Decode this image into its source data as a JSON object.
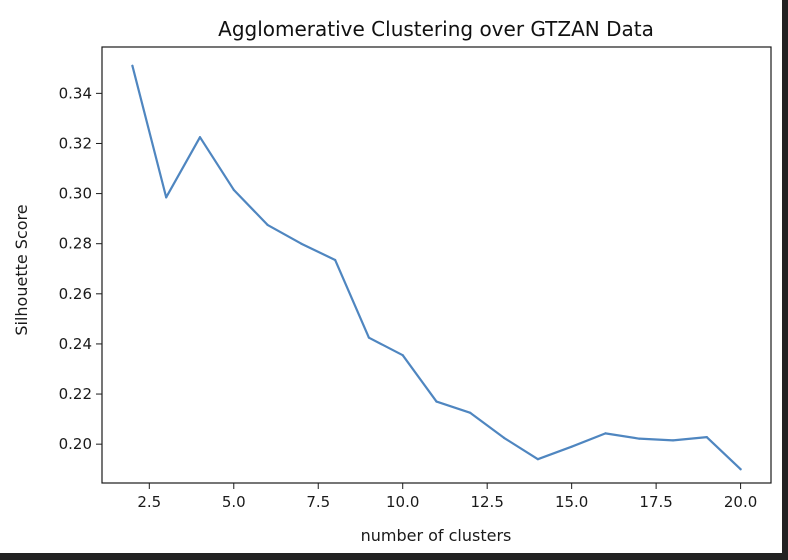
{
  "chart_data": {
    "type": "line",
    "title": "Agglomerative Clustering over GTZAN Data",
    "xlabel": "number of clusters",
    "ylabel": "Silhouette Score",
    "xlim": [
      1.1,
      20.9
    ],
    "ylim": [
      0.1845,
      0.3585
    ],
    "xticks": [
      2.5,
      5.0,
      7.5,
      10.0,
      12.5,
      15.0,
      17.5,
      20.0
    ],
    "xtick_labels": [
      "2.5",
      "5.0",
      "7.5",
      "10.0",
      "12.5",
      "15.0",
      "17.5",
      "20.0"
    ],
    "yticks": [
      0.2,
      0.22,
      0.24,
      0.26,
      0.28,
      0.3,
      0.32,
      0.34
    ],
    "ytick_labels": [
      "0.20",
      "0.22",
      "0.24",
      "0.26",
      "0.28",
      "0.30",
      "0.32",
      "0.34"
    ],
    "grid": false,
    "color": "#4f86c0",
    "x": [
      2,
      3,
      4,
      5,
      6,
      7,
      8,
      9,
      10,
      11,
      12,
      13,
      14,
      15,
      16,
      17,
      18,
      19,
      20
    ],
    "series": [
      {
        "values": [
          0.351,
          0.2985,
          0.3225,
          0.3015,
          0.2875,
          0.28,
          0.2735,
          0.2425,
          0.2355,
          0.217,
          0.2125,
          0.2025,
          0.194,
          0.199,
          0.2043,
          0.2022,
          0.2015,
          0.2028,
          0.19
        ]
      }
    ]
  }
}
